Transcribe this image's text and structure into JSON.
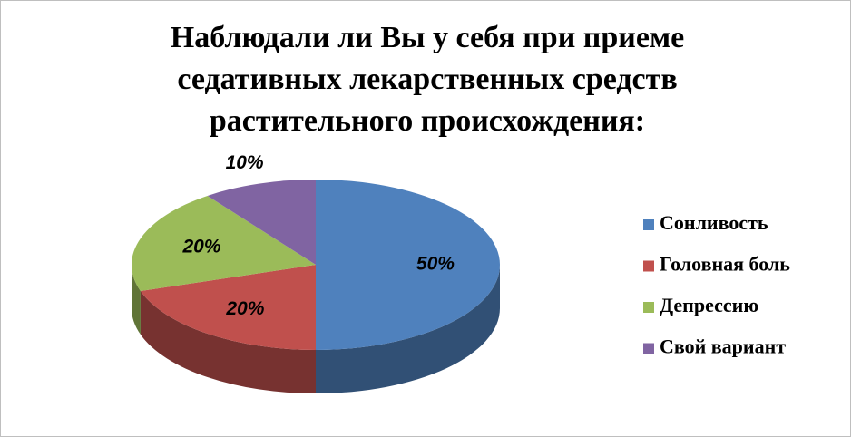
{
  "chart_data": {
    "type": "pie",
    "title": "Наблюдали ли Вы у себя при приеме седативных лекарственных средств растительного происхождения:",
    "categories": [
      "Сонливость",
      "Головная боль",
      "Депрессию",
      "Свой вариант"
    ],
    "values": [
      50,
      20,
      20,
      10
    ],
    "value_labels": [
      "50%",
      "20%",
      "20%",
      "10%"
    ],
    "colors": [
      "#4f81bd",
      "#c0504d",
      "#9bbb59",
      "#8064a2"
    ],
    "legend": "right"
  }
}
